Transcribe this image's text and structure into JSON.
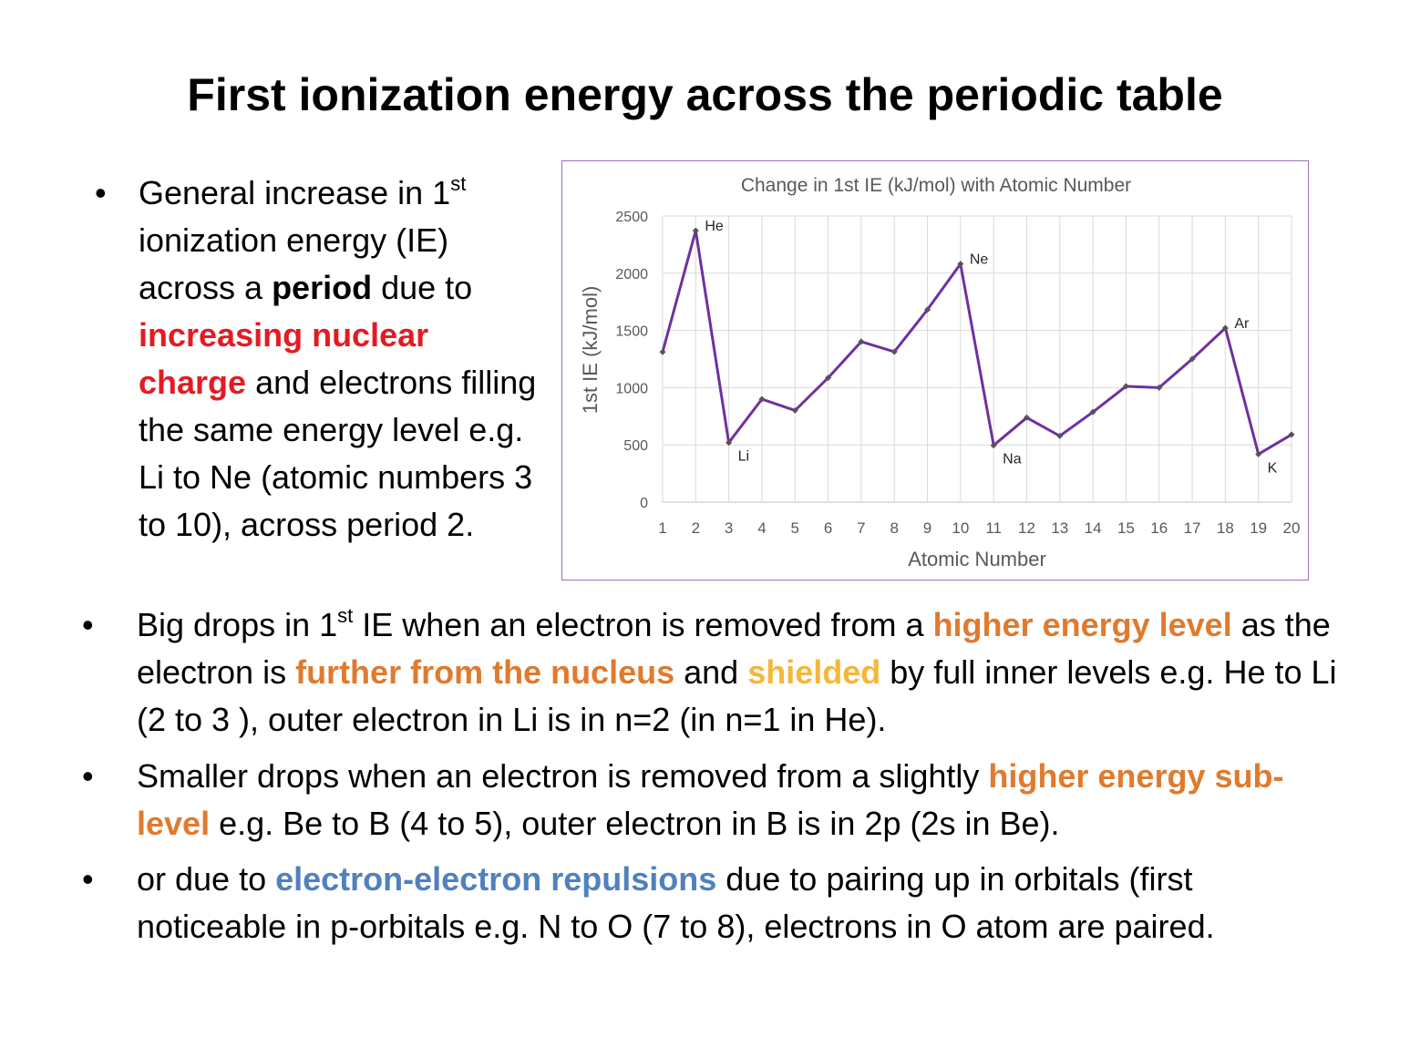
{
  "title": "First ionization energy across the periodic table",
  "colors": {
    "red": "#e31b23",
    "orange": "#e07a2e",
    "yellow": "#f3b73a",
    "blue": "#4f81bd",
    "line": "#7030a0",
    "marker": "#555555",
    "grid": "#d9d9d9",
    "chart_border": "#9b6fc2"
  },
  "bullets": [
    {
      "segments": [
        {
          "text": "General increase in 1"
        },
        {
          "text": "st",
          "sup": true
        },
        {
          "text": " ionization energy (IE) across a "
        },
        {
          "text": "period",
          "bold": true
        },
        {
          "text": " due to "
        },
        {
          "text": "increasing nuclear charge",
          "bold": true,
          "color": "red"
        },
        {
          "text": " and electrons filling the same energy level e.g. Li to Ne (atomic numbers 3 to 10), across period 2."
        }
      ]
    },
    {
      "segments": [
        {
          "text": "Big drops in 1"
        },
        {
          "text": "st",
          "sup": true
        },
        {
          "text": " IE when an electron is removed from a "
        },
        {
          "text": "higher energy level",
          "bold": true,
          "color": "orange"
        },
        {
          "text": " as the electron is "
        },
        {
          "text": "further from the nucleus",
          "bold": true,
          "color": "orange"
        },
        {
          "text": " and "
        },
        {
          "text": "shielded",
          "bold": true,
          "color": "yellow"
        },
        {
          "text": " by full inner levels e.g. He to Li (2 to 3 ), outer electron in Li is in n=2 (in n=1 in He)."
        }
      ]
    },
    {
      "segments": [
        {
          "text": "Smaller drops when an electron is removed from a slightly "
        },
        {
          "text": "higher energy sub-level",
          "bold": true,
          "color": "orange"
        },
        {
          "text": " e.g. Be to B (4 to 5), outer electron in B is in 2p (2s in Be)."
        }
      ]
    },
    {
      "segments": [
        {
          "text": "or due to "
        },
        {
          "text": "electron-electron repulsions",
          "bold": true,
          "color": "blue"
        },
        {
          "text": " due to pairing up in orbitals (first noticeable in p-orbitals e.g. N to O (7 to 8), electrons in O atom are paired."
        }
      ]
    }
  ],
  "chart_data": {
    "type": "line",
    "title": "Change in 1st IE (kJ/mol) with Atomic Number",
    "xlabel": "Atomic Number",
    "ylabel": "1st IE (kJ/mol)",
    "categories": [
      "1",
      "2",
      "3",
      "4",
      "5",
      "6",
      "7",
      "8",
      "9",
      "10",
      "11",
      "12",
      "13",
      "14",
      "15",
      "16",
      "17",
      "18",
      "19",
      "20"
    ],
    "series": [
      {
        "values": [
          1312,
          2372,
          520,
          900,
          801,
          1086,
          1402,
          1314,
          1681,
          2081,
          496,
          738,
          578,
          787,
          1012,
          1000,
          1251,
          1521,
          419,
          590
        ]
      }
    ],
    "point_labels": [
      {
        "index": 1,
        "text": "He",
        "pos": "above-right"
      },
      {
        "index": 2,
        "text": "Li",
        "pos": "below-right"
      },
      {
        "index": 9,
        "text": "Ne",
        "pos": "above-right"
      },
      {
        "index": 10,
        "text": "Na",
        "pos": "below-right"
      },
      {
        "index": 17,
        "text": "Ar",
        "pos": "above-right"
      },
      {
        "index": 18,
        "text": "K",
        "pos": "below-right"
      }
    ],
    "ylim": [
      0,
      2500
    ],
    "yticks": [
      0,
      500,
      1000,
      1500,
      2000,
      2500
    ],
    "grid": true,
    "legend": "none"
  }
}
